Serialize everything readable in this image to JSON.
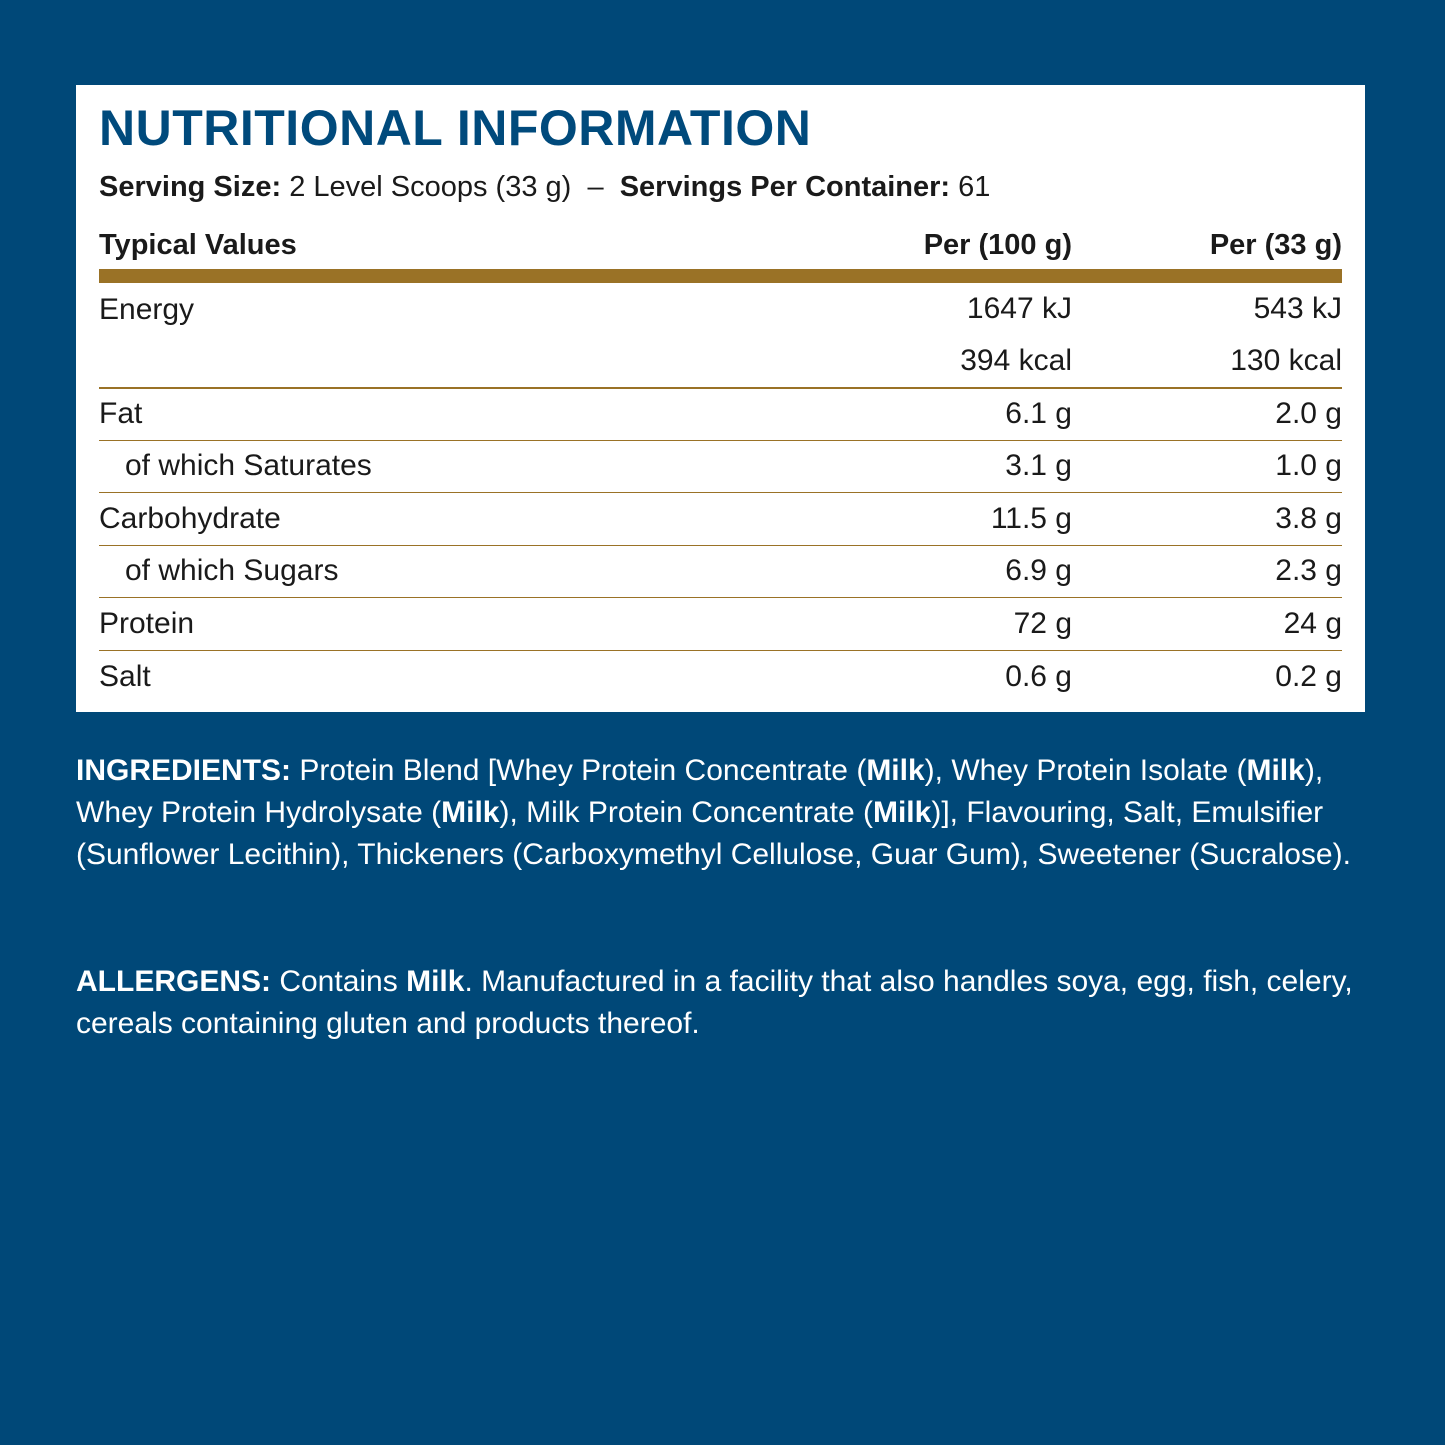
{
  "nutrition": {
    "title": "NUTRITIONAL INFORMATION",
    "serving_size_label": "Serving Size:",
    "serving_size_value": "2 Level Scoops (33 g)",
    "separator": "–",
    "servings_label": "Servings Per Container:",
    "servings_value": "61",
    "headers": [
      "Typical Values",
      "Per (100 g)",
      "Per (33 g)"
    ],
    "energy": {
      "label": "Energy",
      "per100": [
        "1647 kJ",
        "394 kcal"
      ],
      "perServing": [
        "543 kJ",
        "130 kcal"
      ]
    },
    "rows": [
      {
        "label": "Fat",
        "per100": "6.1 g",
        "perServing": "2.0 g",
        "indent": false
      },
      {
        "label": "of which Saturates",
        "per100": "3.1 g",
        "perServing": "1.0 g",
        "indent": true
      },
      {
        "label": "Carbohydrate",
        "per100": "11.5 g",
        "perServing": "3.8 g",
        "indent": false
      },
      {
        "label": "of which Sugars",
        "per100": "6.9 g",
        "perServing": "2.3 g",
        "indent": true
      },
      {
        "label": "Protein",
        "per100": "72 g",
        "perServing": "24 g",
        "indent": false
      },
      {
        "label": "Salt",
        "per100": "0.6 g",
        "perServing": "0.2 g",
        "indent": false
      }
    ]
  },
  "ingredients": [
    {
      "t": "INGREDIENTS:",
      "b": true
    },
    {
      "t": " Protein Blend [Whey Protein Concentrate (",
      "b": false
    },
    {
      "t": "Milk",
      "b": true
    },
    {
      "t": "), Whey Protein Isolate (",
      "b": false
    },
    {
      "t": "Milk",
      "b": true
    },
    {
      "t": "), Whey Protein Hydrolysate (",
      "b": false
    },
    {
      "t": "Milk",
      "b": true
    },
    {
      "t": "), Milk Protein Concentrate (",
      "b": false
    },
    {
      "t": "Milk",
      "b": true
    },
    {
      "t": ")], Flavouring, Salt, Emulsifier (Sunflower Lecithin), Thickeners (Carboxymethyl Cellulose, Guar Gum), Sweetener (Sucralose).",
      "b": false
    }
  ],
  "allergens": [
    {
      "t": "ALLERGENS:",
      "b": true
    },
    {
      "t": " Contains ",
      "b": false
    },
    {
      "t": "Milk",
      "b": true
    },
    {
      "t": ". Manufactured in a facility that also handles soya, egg, fish, celery, cereals containing gluten and products thereof.",
      "b": false
    }
  ],
  "colors": {
    "background": "#004878",
    "title": "#004a7c",
    "accent_gold": "#9a7226"
  }
}
